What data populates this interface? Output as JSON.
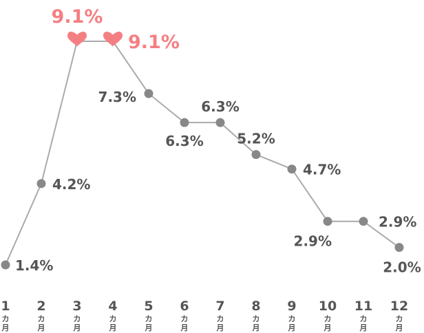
{
  "chart_data": {
    "type": "line",
    "x": [
      "1",
      "2",
      "3",
      "4",
      "5",
      "6",
      "7",
      "8",
      "9",
      "10",
      "11",
      "12"
    ],
    "x_unit": [
      "カ",
      "月"
    ],
    "values": [
      1.4,
      4.2,
      9.1,
      9.1,
      7.3,
      6.3,
      6.3,
      5.2,
      4.7,
      2.9,
      2.9,
      2.0
    ],
    "labels": [
      "1.4%",
      "4.2%",
      "9.1%",
      "9.1%",
      "7.3%",
      "6.3%",
      "6.3%",
      "5.2%",
      "4.7%",
      "2.9%",
      "2.9%",
      "2.0%"
    ],
    "highlighted_points": [
      3,
      4
    ],
    "ylim": [
      1.4,
      9.1
    ],
    "grid": false,
    "legend": "none",
    "colors": {
      "line": "#aaaaaa",
      "marker": "#888888",
      "highlight": "#f47f83",
      "text": "#555555"
    }
  }
}
